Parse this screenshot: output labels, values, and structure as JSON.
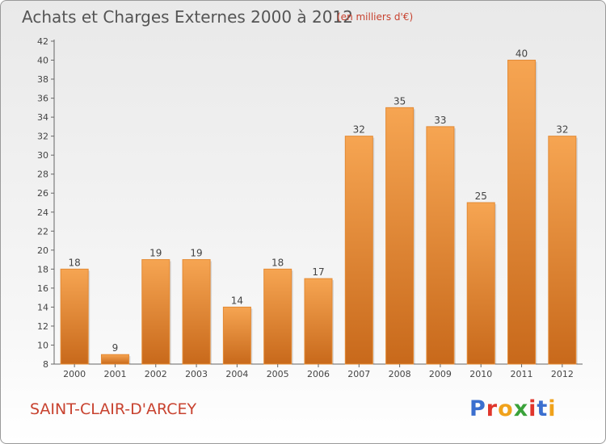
{
  "title": "Achats et Charges Externes 2000 à 2012",
  "subtitle": "(en milliers d'€)",
  "place": "SAINT-CLAIR-D'ARCEY",
  "logo": {
    "letters": [
      "P",
      "r",
      "o",
      "x",
      "i",
      "t",
      "i"
    ],
    "colors": [
      "#3b6fcf",
      "#e0362c",
      "#f0a21b",
      "#3aa23a",
      "#e0362c",
      "#3b6fcf",
      "#f0a21b"
    ]
  },
  "chart_data": {
    "type": "bar",
    "categories": [
      "2000",
      "2001",
      "2002",
      "2003",
      "2004",
      "2005",
      "2006",
      "2007",
      "2008",
      "2009",
      "2010",
      "2011",
      "2012"
    ],
    "values": [
      18,
      9,
      19,
      19,
      14,
      18,
      17,
      32,
      35,
      33,
      25,
      40,
      32
    ],
    "ylim": [
      8,
      42
    ],
    "yticks": [
      8,
      10,
      12,
      14,
      16,
      18,
      20,
      22,
      24,
      26,
      28,
      30,
      32,
      34,
      36,
      38,
      40,
      42
    ],
    "grid": false,
    "bar_color": "#f0922f",
    "legend": "none"
  }
}
